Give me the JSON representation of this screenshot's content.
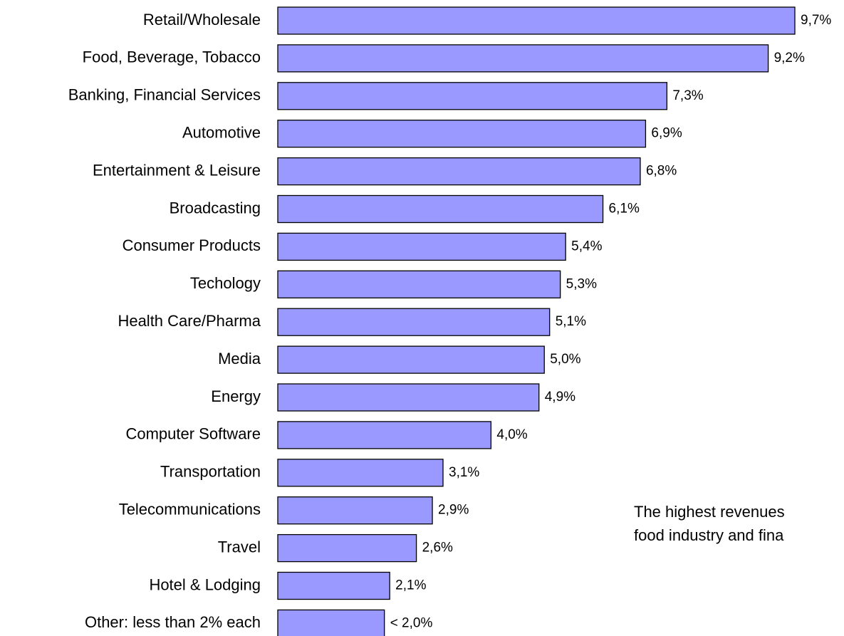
{
  "chart_data": {
    "type": "bar",
    "orientation": "horizontal",
    "categories": [
      "Retail/Wholesale",
      "Food, Beverage, Tobacco",
      "Banking, Financial Services",
      "Automotive",
      "Entertainment & Leisure",
      "Broadcasting",
      "Consumer Products",
      "Techology",
      "Health Care/Pharma",
      "Media",
      "Energy",
      "Computer Software",
      "Transportation",
      "Telecommunications",
      "Travel",
      "Hotel & Lodging",
      "Other: less than 2% each"
    ],
    "values": [
      9.7,
      9.2,
      7.3,
      6.9,
      6.8,
      6.1,
      5.4,
      5.3,
      5.1,
      5.0,
      4.9,
      4.0,
      3.1,
      2.9,
      2.6,
      2.1,
      2.0
    ],
    "value_labels": [
      "9,7%",
      "9,2%",
      "7,3%",
      "6,9%",
      "6,8%",
      "6,1%",
      "5,4%",
      "5,3%",
      "5,1%",
      "5,0%",
      "4,9%",
      "4,0%",
      "3,1%",
      "2,9%",
      "2,6%",
      "2,1%",
      "< 2,0%"
    ],
    "color": "#9999ff",
    "annotations": [
      "The highest revenues",
      "food industry and fina"
    ]
  }
}
